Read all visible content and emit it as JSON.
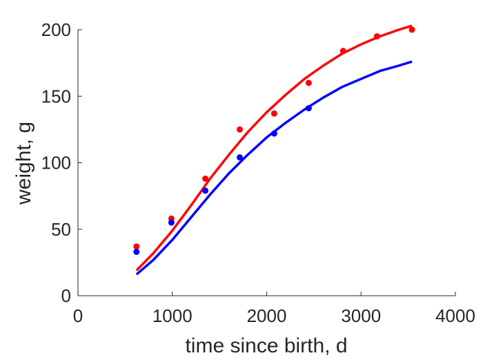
{
  "chart_data": {
    "type": "scatter",
    "xlabel": "time since birth, d",
    "ylabel": "weight, g",
    "xlim": [
      0,
      4000
    ],
    "ylim": [
      0,
      200
    ],
    "xticks": [
      0,
      1000,
      2000,
      3000,
      4000
    ],
    "yticks": [
      0,
      50,
      100,
      150,
      200
    ],
    "xtick_labels": [
      "0",
      "1000",
      "2000",
      "3000",
      "4000"
    ],
    "ytick_labels": [
      "0",
      "50",
      "100",
      "150",
      "200"
    ],
    "grid": false,
    "legend": "none",
    "series": [
      {
        "kind": "points",
        "color": "#ff0000",
        "x": [
          620,
          990,
          1350,
          1715,
          2080,
          2445,
          2810,
          3170,
          3540
        ],
        "y": [
          37,
          58,
          88,
          125,
          137,
          160,
          184,
          195,
          200
        ]
      },
      {
        "kind": "points",
        "color": "#0000ff",
        "x": [
          620,
          990,
          1350,
          1715,
          2080,
          2445
        ],
        "y": [
          33,
          55,
          79,
          104,
          122,
          141
        ]
      },
      {
        "kind": "line",
        "color": "#ff0000",
        "x": [
          620,
          800,
          1000,
          1200,
          1400,
          1600,
          1800,
          2000,
          2200,
          2400,
          2600,
          2800,
          3000,
          3200,
          3400,
          3540
        ],
        "y": [
          19,
          32,
          49,
          68,
          88,
          106,
          123,
          138,
          151,
          163,
          173,
          182,
          189,
          195,
          200,
          203
        ]
      },
      {
        "kind": "line",
        "color": "#0000ff",
        "x": [
          620,
          800,
          1000,
          1200,
          1400,
          1600,
          1800,
          2000,
          2200,
          2400,
          2600,
          2800,
          3000,
          3200,
          3400,
          3540
        ],
        "y": [
          16,
          27,
          42,
          59,
          76,
          92,
          106,
          119,
          130,
          140,
          149,
          157,
          163,
          169,
          173,
          176
        ]
      }
    ]
  }
}
